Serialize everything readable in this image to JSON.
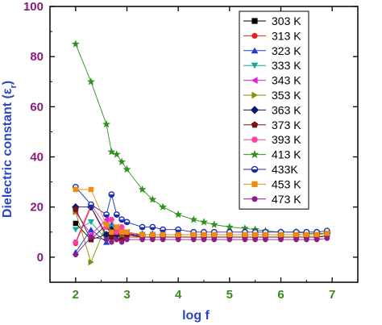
{
  "chart_data": {
    "type": "line",
    "xlabel": "log f",
    "ylabel_main": "Dielectric constant (ε",
    "ylabel_sub": "r",
    "ylabel_close": ")",
    "xlim": [
      1.5,
      7.5
    ],
    "ylim": [
      -10,
      100
    ],
    "xticks": [
      2,
      3,
      4,
      5,
      6,
      7
    ],
    "yticks": [
      0,
      20,
      40,
      60,
      80,
      100
    ],
    "legend_position": "top-right",
    "x": [
      2.0,
      2.3,
      2.6,
      2.7,
      2.8,
      2.9,
      3.0,
      3.3,
      3.5,
      3.7,
      4.0,
      4.3,
      4.5,
      4.7,
      5.0,
      5.3,
      5.5,
      5.7,
      6.0,
      6.3,
      6.5,
      6.7,
      6.9
    ],
    "series": [
      {
        "name": "303 K",
        "color": "#000000",
        "marker": "square",
        "values": [
          13.5,
          7,
          9,
          8,
          10,
          8,
          9,
          8,
          8,
          8,
          8,
          8,
          8,
          8,
          8,
          8,
          8,
          8,
          8,
          8,
          8,
          8,
          8.5
        ]
      },
      {
        "name": "313 K",
        "color": "#e8201a",
        "marker": "circle",
        "values": [
          5.5,
          20,
          8,
          10,
          7,
          10,
          8,
          8,
          8,
          8,
          8,
          8,
          8,
          8,
          8,
          8,
          8,
          8,
          8,
          8,
          8,
          8,
          8.5
        ]
      },
      {
        "name": "323 K",
        "color": "#1f3cd6",
        "marker": "triangle-up",
        "values": [
          2,
          11,
          6,
          13,
          8,
          11,
          9,
          9,
          9,
          9,
          9,
          9,
          9,
          9,
          9,
          9,
          9,
          9,
          9,
          9,
          9,
          9,
          9.5
        ]
      },
      {
        "name": "333 K",
        "color": "#1aa89a",
        "marker": "triangle-down",
        "values": [
          11,
          14,
          7,
          12,
          10,
          9,
          10,
          9,
          9,
          9,
          9,
          9,
          9,
          9,
          9,
          9,
          9,
          9,
          9,
          9,
          9,
          9,
          9.5
        ]
      },
      {
        "name": "343 K",
        "color": "#e01ee0",
        "marker": "triangle-left",
        "values": [
          18,
          9,
          15,
          9,
          12,
          8,
          10,
          8,
          8,
          8,
          8,
          8,
          8,
          8,
          8,
          8,
          8,
          8,
          8,
          8,
          8,
          8,
          8.5
        ]
      },
      {
        "name": "353 K",
        "color": "#8a8a0a",
        "marker": "triangle-right",
        "values": [
          18,
          -2,
          13,
          9,
          11,
          8,
          9,
          8,
          8,
          8,
          8,
          8,
          8,
          8,
          8,
          8,
          8,
          8,
          8,
          8,
          8,
          8,
          8.5
        ]
      },
      {
        "name": "363 K",
        "color": "#0a1a70",
        "marker": "diamond",
        "values": [
          20,
          20,
          9,
          11,
          9,
          10,
          9,
          9,
          9,
          9,
          9,
          9,
          9,
          9,
          9,
          9,
          9,
          9,
          9,
          9,
          9,
          9,
          9.5
        ]
      },
      {
        "name": "373 K",
        "color": "#7a1010",
        "marker": "pentagon",
        "values": [
          19,
          7,
          13,
          8,
          10,
          7,
          9,
          8,
          8,
          8,
          8,
          8,
          8,
          8,
          8,
          8,
          8,
          8,
          8,
          8,
          8,
          8,
          8.5
        ]
      },
      {
        "name": "393 K",
        "color": "#ff3fa0",
        "marker": "hexagon",
        "values": [
          6,
          21,
          12,
          15,
          10,
          12,
          10,
          9,
          9,
          9,
          9,
          9,
          9,
          9,
          9,
          9,
          9,
          9,
          9,
          9,
          9,
          9,
          9.5
        ]
      },
      {
        "name": "413 K",
        "color": "#2f8f1f",
        "marker": "star",
        "values": [
          85,
          70,
          53,
          42,
          41,
          38,
          35,
          27,
          23,
          20,
          17,
          15,
          14,
          13,
          12,
          11.5,
          11,
          10.5,
          10,
          10,
          9.5,
          9.5,
          9.5
        ]
      },
      {
        "name": "433K",
        "color": "#1a2db0",
        "marker": "circle-half",
        "values": [
          28,
          21,
          17,
          25,
          17,
          15,
          14,
          12,
          12,
          11,
          11,
          10,
          10,
          10,
          10,
          10,
          10,
          10,
          10,
          10,
          10,
          10,
          10.5
        ]
      },
      {
        "name": "453 K",
        "color": "#f08c10",
        "marker": "square",
        "values": [
          27,
          27,
          13,
          10,
          12,
          10,
          10,
          9,
          9,
          9,
          9,
          9,
          9,
          9,
          9,
          9,
          9,
          9,
          9,
          9,
          9,
          9,
          9.5
        ]
      },
      {
        "name": "473 K",
        "color": "#8a1f8a",
        "marker": "circle",
        "values": [
          1,
          8,
          7,
          6,
          7,
          6,
          7,
          7,
          7,
          7,
          7,
          7,
          7,
          7,
          7,
          7,
          7,
          7,
          7,
          7,
          7,
          7,
          7.5
        ]
      }
    ]
  }
}
